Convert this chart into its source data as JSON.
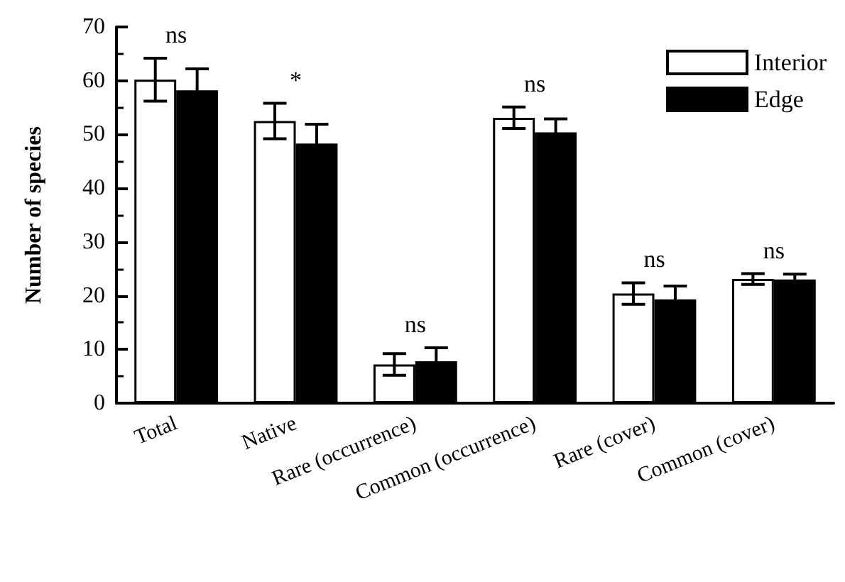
{
  "chart_data": {
    "type": "bar",
    "ylabel": "Number of species",
    "categories": [
      "Total",
      "Native",
      "Rare (occurrence)",
      "Common (occurrence)",
      "Rare (cover)",
      "Common (cover)"
    ],
    "series": [
      {
        "name": "Interior",
        "color": "#ffffff",
        "values": [
          60.2,
          52.5,
          7.2,
          53.1,
          20.4,
          23.1
        ],
        "errors": [
          4,
          3.3,
          2,
          2,
          2,
          1
        ]
      },
      {
        "name": "Edge",
        "color": "#000000",
        "values": [
          58.2,
          48.3,
          7.8,
          50.4,
          19.3,
          23.0
        ],
        "errors": [
          4,
          3.6,
          2.5,
          2.5,
          2.5,
          1
        ]
      }
    ],
    "ylim": [
      0,
      70
    ],
    "yticks": [
      0,
      10,
      20,
      30,
      40,
      50,
      60,
      70
    ],
    "grid": false,
    "legend": "top right",
    "annotations": [
      "ns",
      "*",
      "ns",
      "ns",
      "ns",
      "ns"
    ]
  }
}
